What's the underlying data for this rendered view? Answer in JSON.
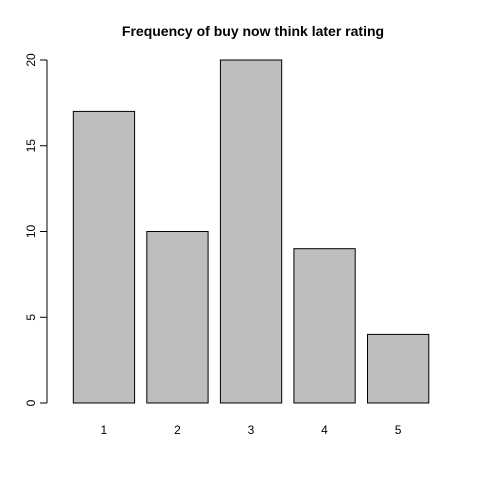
{
  "chart_data": {
    "type": "bar",
    "title": "Frequency of buy now think later rating",
    "xlabel": "",
    "ylabel": "",
    "categories": [
      "1",
      "2",
      "3",
      "4",
      "5"
    ],
    "values": [
      17,
      10,
      20,
      9,
      4
    ],
    "ylim": [
      0,
      20
    ],
    "yticks": [
      "0",
      "5",
      "10",
      "15",
      "20"
    ],
    "bar_color": "#bebebe",
    "border_color": "#000000",
    "grid": false,
    "legend": "none"
  }
}
